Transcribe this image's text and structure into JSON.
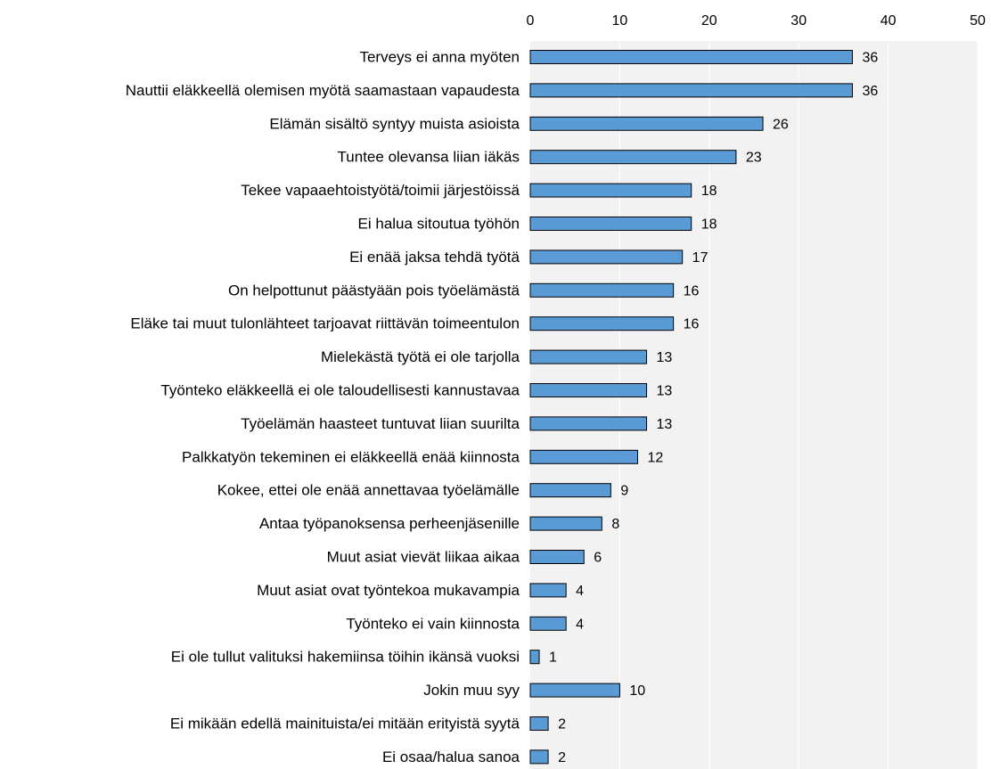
{
  "chart_data": {
    "type": "bar",
    "orientation": "horizontal",
    "title": "",
    "xlabel": "",
    "ylabel": "",
    "xlim": [
      0,
      50
    ],
    "x_ticks": [
      0,
      10,
      20,
      30,
      40,
      50
    ],
    "x_axis_position": "top",
    "grid": true,
    "legend": "none",
    "colors": {
      "bar": "#5b9bd5",
      "bar_edge": "#000000",
      "plot_bg": "#f2f2f2",
      "grid": "#ffffff"
    },
    "categories": [
      "Terveys ei anna myöten",
      "Nauttii eläkkeellä olemisen myötä saamastaan vapaudesta",
      "Elämän sisältö syntyy muista asioista",
      "Tuntee olevansa liian iäkäs",
      "Tekee vapaaehtoistyötä/toimii järjestöissä",
      "Ei halua sitoutua työhön",
      "Ei enää jaksa tehdä työtä",
      "On helpottunut päästyään pois työelämästä",
      "Eläke tai muut tulonlähteet tarjoavat riittävän toimeentulon",
      "Mielekästä työtä ei ole tarjolla",
      "Työnteko eläkkeellä ei ole taloudellisesti kannustavaa",
      "Työelämän haasteet tuntuvat liian suurilta",
      "Palkkatyön tekeminen ei eläkkeellä enää kiinnosta",
      "Kokee, ettei ole enää annettavaa työelämälle",
      "Antaa työpanoksensa perheenjäsenille",
      "Muut asiat vievät liikaa aikaa",
      "Muut asiat ovat työntekoa mukavampia",
      "Työnteko ei vain kiinnosta",
      "Ei ole tullut valituksi hakemiinsa töihin ikänsä vuoksi",
      "Jokin muu syy",
      "Ei mikään edellä mainituista/ei mitään erityistä syytä",
      "Ei osaa/halua sanoa"
    ],
    "values": [
      36,
      36,
      26,
      23,
      18,
      18,
      17,
      16,
      16,
      13,
      13,
      13,
      12,
      9,
      8,
      6,
      4,
      4,
      1,
      10,
      2,
      2
    ],
    "value_labels": [
      "36",
      "36",
      "26",
      "23",
      "18",
      "18",
      "17",
      "16",
      "16",
      "13",
      "13",
      "13",
      "12",
      "9",
      "8",
      "6",
      "4",
      "4",
      "1",
      "10",
      "2",
      "2"
    ]
  }
}
